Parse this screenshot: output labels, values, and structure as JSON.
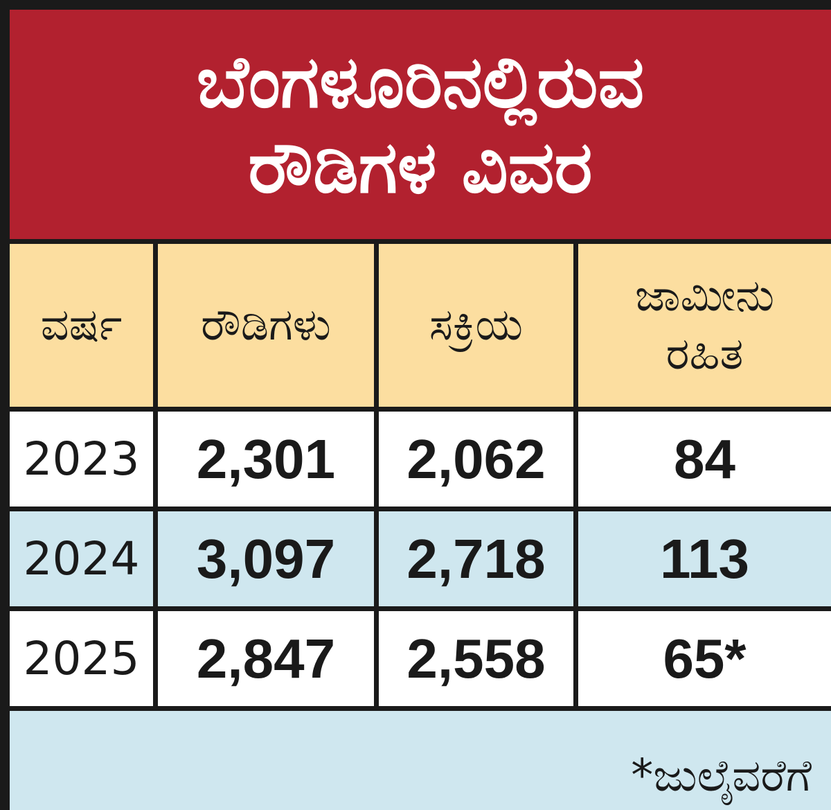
{
  "title_line1": "ಬೆಂಗಳೂರಿನಲ್ಲಿರುವ",
  "title_line2": "ರೌಡಿಗಳ ವಿವರ",
  "colors": {
    "title_bg": "#b2212f",
    "header_bg": "#fcdea0",
    "row_alt_bg": "#cfe7ef",
    "row_bg": "#ffffff",
    "border": "#1a1a1a"
  },
  "chart_data": {
    "type": "table",
    "columns": [
      "ವರ್ಷ",
      "ರೌಡಿಗಳು",
      "ಸಕ್ರಿಯ",
      "ಜಾಮೀನು ರಹಿತ"
    ],
    "header": {
      "year": "ವರ್ಷ",
      "rowdies": "ರೌಡಿಗಳು",
      "active": "ಸಕ್ರಿಯ",
      "nonbail_line1": "ಜಾಮೀನು",
      "nonbail_line2": "ರಹಿತ"
    },
    "rows": [
      [
        "2023",
        "2,301",
        "2,062",
        "84"
      ],
      [
        "2024",
        "3,097",
        "2,718",
        "113"
      ],
      [
        "2025",
        "2,847",
        "2,558",
        "65*"
      ]
    ],
    "footnote": "*ಜುಲೈವರೆಗೆ"
  }
}
